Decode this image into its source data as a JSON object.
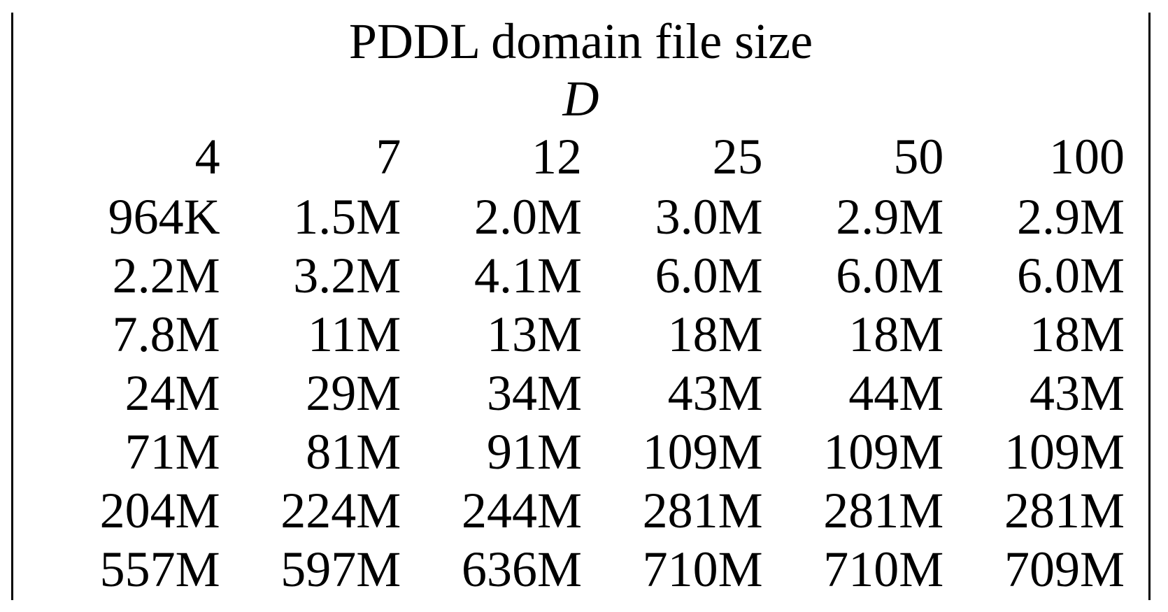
{
  "table": {
    "title": "PDDL domain file size",
    "variable": "D",
    "columns": [
      "4",
      "7",
      "12",
      "25",
      "50",
      "100"
    ],
    "rows": [
      [
        "964K",
        "1.5M",
        "2.0M",
        "3.0M",
        "2.9M",
        "2.9M"
      ],
      [
        "2.2M",
        "3.2M",
        "4.1M",
        "6.0M",
        "6.0M",
        "6.0M"
      ],
      [
        "7.8M",
        "11M",
        "13M",
        "18M",
        "18M",
        "18M"
      ],
      [
        "24M",
        "29M",
        "34M",
        "43M",
        "44M",
        "43M"
      ],
      [
        "71M",
        "81M",
        "91M",
        "109M",
        "109M",
        "109M"
      ],
      [
        "204M",
        "224M",
        "244M",
        "281M",
        "281M",
        "281M"
      ],
      [
        "557M",
        "597M",
        "636M",
        "710M",
        "710M",
        "709M"
      ]
    ]
  }
}
